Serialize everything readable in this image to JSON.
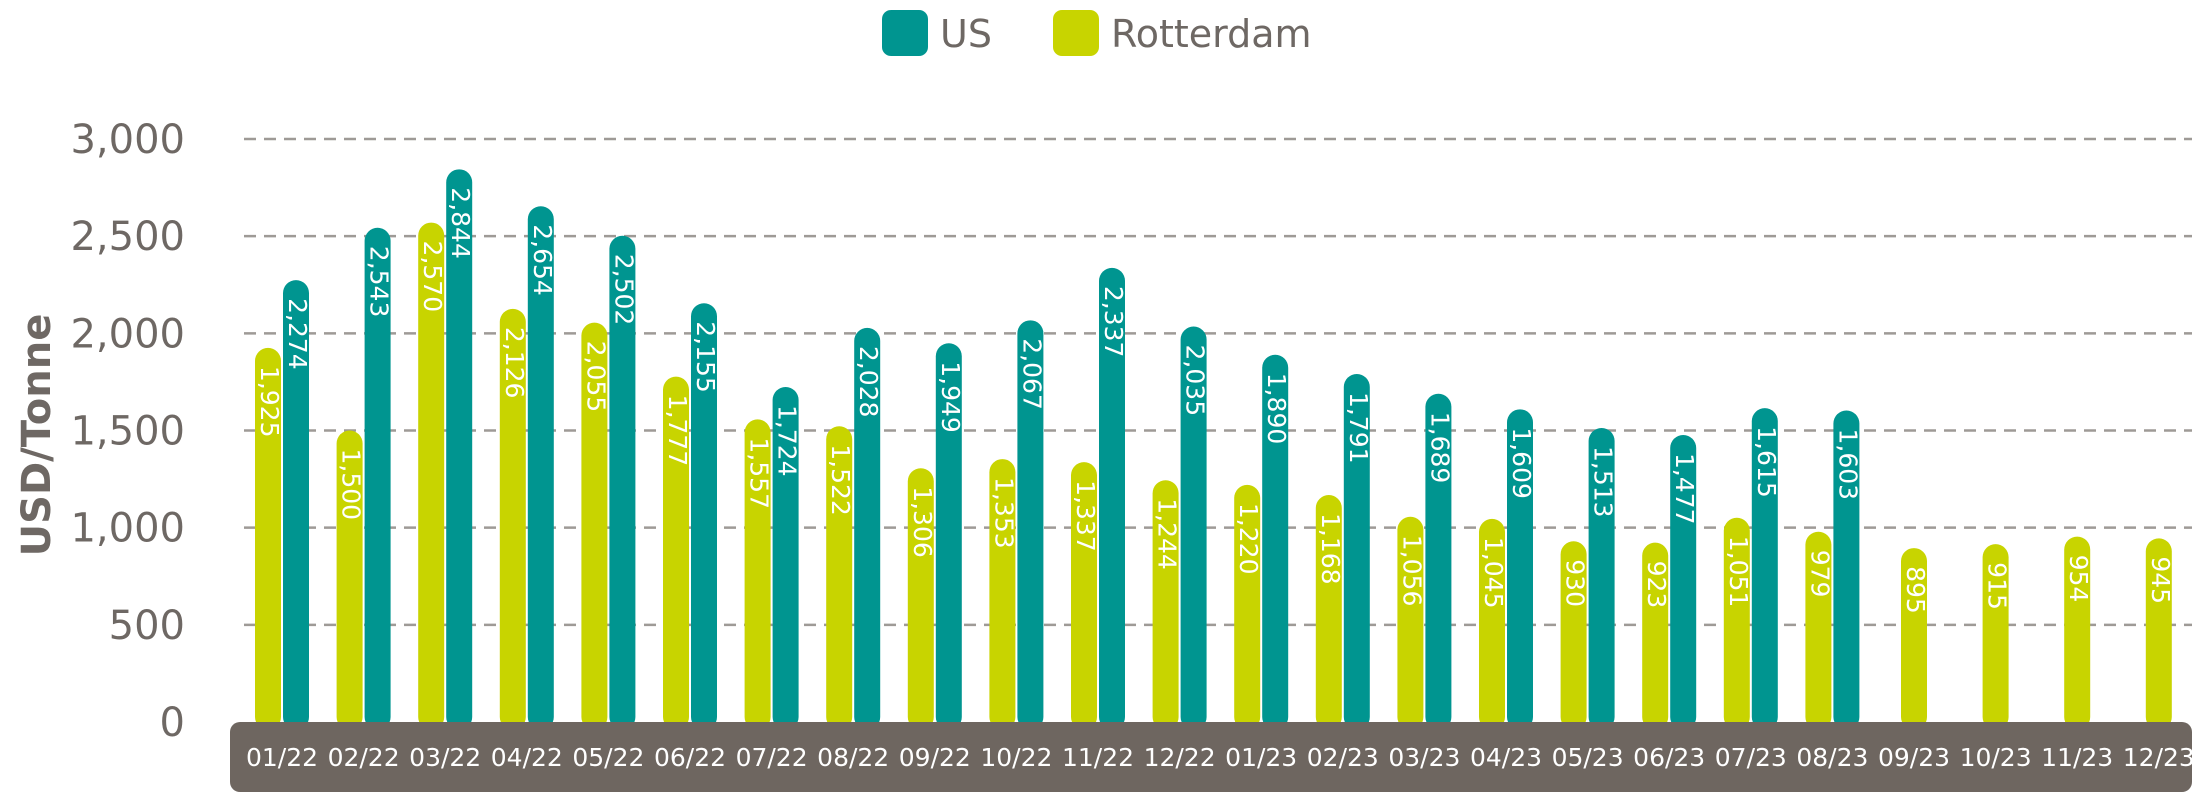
{
  "chart_data": {
    "type": "bar",
    "ylabel": "USD/Tonne",
    "ylim": [
      0,
      3000
    ],
    "yticks": [
      "0",
      "500",
      "1,000",
      "1,500",
      "2,000",
      "2,500",
      "3,000"
    ],
    "categories": [
      "01/22",
      "02/22",
      "03/22",
      "04/22",
      "05/22",
      "06/22",
      "07/22",
      "08/22",
      "09/22",
      "10/22",
      "11/22",
      "12/22",
      "01/23",
      "02/23",
      "03/23",
      "04/23",
      "05/23",
      "06/23",
      "07/23",
      "08/23",
      "09/23",
      "10/23",
      "11/23",
      "12/23"
    ],
    "series": [
      {
        "name": "Rotterdam",
        "color": "#c8d400",
        "values": [
          1925,
          1500,
          2570,
          2126,
          2055,
          1777,
          1557,
          1522,
          1306,
          1353,
          1337,
          1244,
          1220,
          1168,
          1056,
          1045,
          930,
          923,
          1051,
          979,
          895,
          915,
          954,
          945
        ],
        "labels": [
          "1,925",
          "1,500",
          "2,570",
          "2,126",
          "2,055",
          "1,777",
          "1,557",
          "1,522",
          "1,306",
          "1,353",
          "1,337",
          "1,244",
          "1,220",
          "1,168",
          "1,056",
          "1,045",
          "930",
          "923",
          "1,051",
          "979",
          "895",
          "915",
          "954",
          "945"
        ]
      },
      {
        "name": "US",
        "color": "#009590",
        "values": [
          2274,
          2543,
          2844,
          2654,
          2502,
          2155,
          1724,
          2028,
          1949,
          2067,
          2337,
          2035,
          1890,
          1791,
          1689,
          1609,
          1513,
          1477,
          1615,
          1603,
          null,
          null,
          null,
          null
        ],
        "labels": [
          "2,274",
          "2,543",
          "2,844",
          "2,654",
          "2,502",
          "2,155",
          "1,724",
          "2,028",
          "1,949",
          "2,067",
          "2,337",
          "2,035",
          "1,890",
          "1,791",
          "1,689",
          "1,609",
          "1,513",
          "1,477",
          "1,615",
          "1,603",
          "",
          "",
          "",
          ""
        ]
      }
    ],
    "legend": {
      "placement": "top-center",
      "items": [
        {
          "label": "US",
          "color": "#009590"
        },
        {
          "label": "Rotterdam",
          "color": "#c8d400"
        }
      ]
    },
    "grid": true,
    "x_axis_band_color": "#6e6660"
  }
}
